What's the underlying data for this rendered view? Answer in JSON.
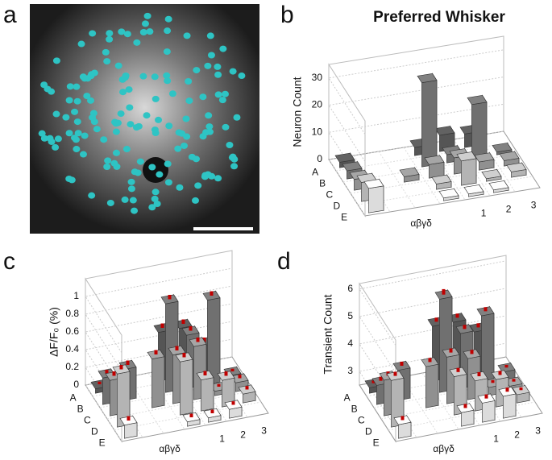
{
  "image_panel": {
    "panel_label": "a"
  },
  "chart_data": [
    {
      "type": "bar3d",
      "panel_label": "b",
      "title": "Preferred Whisker",
      "ylabel": "Neuron Count",
      "categories": [
        "αβγδ",
        null,
        null,
        null,
        "1",
        "2",
        "3"
      ],
      "ylim": [
        0,
        35
      ],
      "yticks": [
        0,
        10,
        20,
        30
      ],
      "grid": true,
      "series": [
        {
          "name": "A",
          "color": "#555555",
          "values": [
            2,
            null,
            null,
            3,
            6,
            5,
            null
          ]
        },
        {
          "name": "B",
          "color": "#707070",
          "values": [
            3,
            null,
            null,
            31,
            3,
            20,
            1
          ]
        },
        {
          "name": "C",
          "color": "#909090",
          "values": [
            4,
            null,
            2,
            5,
            6,
            3,
            2
          ]
        },
        {
          "name": "D",
          "color": "#b4b4b4",
          "values": [
            7,
            null,
            null,
            2,
            9,
            1,
            2
          ]
        },
        {
          "name": "E",
          "color": "#dcdcdc",
          "values": [
            9,
            null,
            null,
            1,
            1,
            1,
            null
          ]
        }
      ]
    },
    {
      "type": "bar3d",
      "panel_label": "c",
      "ylabel": "ΔF/F₀ (%)",
      "categories": [
        "αβγδ",
        null,
        null,
        null,
        "1",
        "2",
        "3"
      ],
      "ylim": [
        0,
        1.2
      ],
      "yticks": [
        0,
        0.2,
        0.4,
        0.6,
        0.8,
        1
      ],
      "grid": true,
      "error_color": "#c00000",
      "series": [
        {
          "name": "A",
          "color": "#555555",
          "values": [
            0.05,
            null,
            null,
            0.55,
            0.55,
            0.3,
            null
          ],
          "errors": [
            0.03,
            null,
            null,
            0.05,
            0.05,
            0.05,
            null
          ]
        },
        {
          "name": "B",
          "color": "#707070",
          "values": [
            0.3,
            0.35,
            null,
            1.0,
            0.6,
            0.95,
            0.05
          ],
          "errors": [
            0.04,
            0.05,
            null,
            0.05,
            0.05,
            0.05,
            0.03
          ]
        },
        {
          "name": "C",
          "color": "#909090",
          "values": [
            0.4,
            null,
            0.55,
            0.55,
            0.6,
            0.05,
            0.1
          ],
          "errors": [
            0.05,
            null,
            0.05,
            0.05,
            0.05,
            0.03,
            0.04
          ]
        },
        {
          "name": "D",
          "color": "#b4b4b4",
          "values": [
            0.6,
            null,
            null,
            0.6,
            0.35,
            0.3,
            0.1
          ],
          "errors": [
            0.05,
            null,
            null,
            0.05,
            0.05,
            0.05,
            0.04
          ]
        },
        {
          "name": "E",
          "color": "#dcdcdc",
          "values": [
            0.15,
            null,
            null,
            0.05,
            0.05,
            0.1,
            null
          ],
          "errors": [
            0.05,
            null,
            null,
            0.04,
            0.04,
            0.04,
            null
          ]
        }
      ]
    },
    {
      "type": "bar3d",
      "panel_label": "d",
      "ylabel": "Transient Count",
      "categories": [
        "αβγδ",
        null,
        null,
        null,
        "1",
        "2",
        "3"
      ],
      "ylim": [
        2.5,
        6.2
      ],
      "yticks": [
        3,
        4,
        5,
        6
      ],
      "grid": true,
      "error_color": "#c00000",
      "series": [
        {
          "name": "A",
          "color": "#555555",
          "values": [
            2.7,
            null,
            null,
            4.5,
            4.5,
            4.0,
            null
          ],
          "errors": [
            0.1,
            null,
            null,
            0.15,
            0.15,
            0.15,
            null
          ]
        },
        {
          "name": "B",
          "color": "#707070",
          "values": [
            3.2,
            3.6,
            null,
            5.9,
            4.5,
            5.0,
            2.8
          ],
          "errors": [
            0.15,
            0.15,
            null,
            0.2,
            0.15,
            0.15,
            0.1
          ]
        },
        {
          "name": "C",
          "color": "#909090",
          "values": [
            3.8,
            null,
            4.0,
            4.2,
            4.0,
            2.8,
            2.7
          ],
          "errors": [
            0.15,
            null,
            0.15,
            0.15,
            0.15,
            0.1,
            0.1
          ]
        },
        {
          "name": "D",
          "color": "#b4b4b4",
          "values": [
            4.2,
            null,
            null,
            3.9,
            3.6,
            3.5,
            2.8
          ],
          "errors": [
            0.15,
            null,
            null,
            0.15,
            0.15,
            0.15,
            0.1
          ]
        },
        {
          "name": "E",
          "color": "#dcdcdc",
          "values": [
            3.0,
            null,
            null,
            3.0,
            3.2,
            3.3,
            null
          ],
          "errors": [
            0.15,
            null,
            null,
            0.15,
            0.15,
            0.15,
            null
          ]
        }
      ]
    }
  ]
}
